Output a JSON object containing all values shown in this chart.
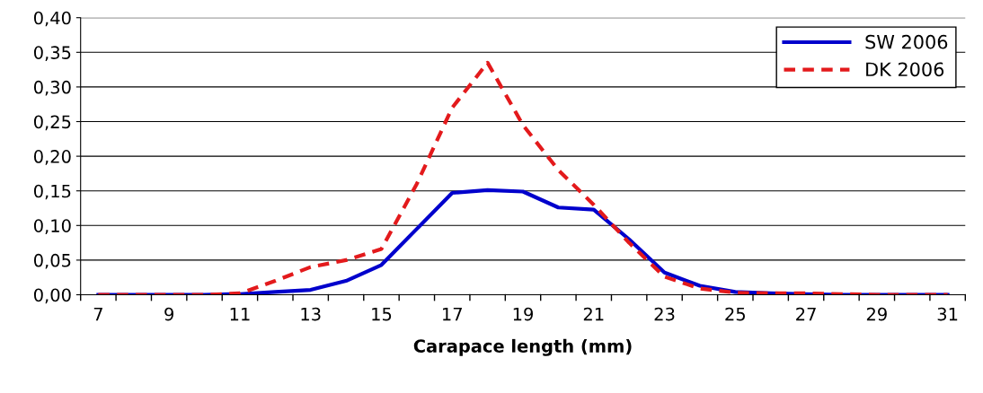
{
  "chart_data": {
    "type": "line",
    "xlabel": "Carapace length (mm)",
    "categories": [
      "7",
      null,
      "9",
      null,
      "11",
      null,
      "13",
      null,
      "15",
      null,
      "17",
      null,
      "19",
      null,
      "21",
      null,
      "23",
      null,
      "25",
      null,
      "27",
      null,
      "29",
      null,
      "31"
    ],
    "series": [
      {
        "name": "SW 2006",
        "color": "#0000cc",
        "line_style": "solid",
        "values": [
          0,
          0,
          0,
          0,
          0.001,
          0.004,
          0.007,
          0.02,
          0.043,
          0.095,
          0.147,
          0.151,
          0.149,
          0.126,
          0.123,
          0.08,
          0.032,
          0.013,
          0.004,
          0.002,
          0.001,
          0,
          0,
          0,
          0
        ]
      },
      {
        "name": "DK 2006",
        "color": "#e31a1c",
        "line_style": "dashed",
        "values": [
          0,
          0,
          0,
          0,
          0.002,
          0.02,
          0.04,
          0.05,
          0.066,
          0.16,
          0.27,
          0.335,
          0.245,
          0.18,
          0.13,
          0.075,
          0.026,
          0.009,
          0.003,
          0.002,
          0.002,
          0.001,
          0,
          0,
          0
        ]
      }
    ],
    "ylim": [
      0,
      0.4
    ],
    "yticks": [
      {
        "value": 0,
        "label": "0,00"
      },
      {
        "value": 0.05,
        "label": "0,05"
      },
      {
        "value": 0.1,
        "label": "0,10"
      },
      {
        "value": 0.15,
        "label": "0,15"
      },
      {
        "value": 0.2,
        "label": "0,20"
      },
      {
        "value": 0.25,
        "label": "0,25"
      },
      {
        "value": 0.3,
        "label": "0,30"
      },
      {
        "value": 0.35,
        "label": "0,35"
      },
      {
        "value": 0.4,
        "label": "0,40"
      }
    ],
    "grid": "y",
    "legend": "top right",
    "marker": "none"
  }
}
